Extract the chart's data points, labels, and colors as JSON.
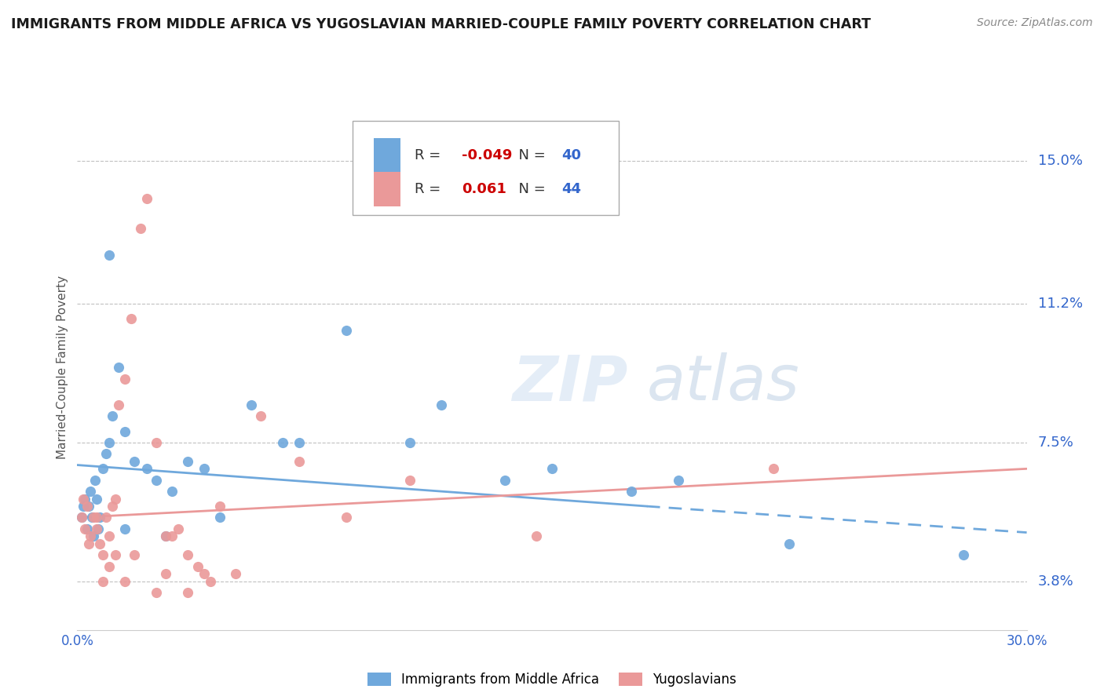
{
  "title": "IMMIGRANTS FROM MIDDLE AFRICA VS YUGOSLAVIAN MARRIED-COUPLE FAMILY POVERTY CORRELATION CHART",
  "source": "Source: ZipAtlas.com",
  "ylabel": "Married-Couple Family Poverty",
  "xlim": [
    0.0,
    30.0
  ],
  "ylim": [
    2.5,
    16.5
  ],
  "ytick_labels": [
    "3.8%",
    "7.5%",
    "11.2%",
    "15.0%"
  ],
  "ytick_values": [
    3.8,
    7.5,
    11.2,
    15.0
  ],
  "xtick_values": [
    0.0,
    5.0,
    10.0,
    15.0,
    20.0,
    25.0,
    30.0
  ],
  "series1_label": "Immigrants from Middle Africa",
  "series1_color": "#6fa8dc",
  "series1_R": "-0.049",
  "series1_N": "40",
  "series2_label": "Yugoslavians",
  "series2_color": "#ea9999",
  "series2_R": "0.061",
  "series2_N": "44",
  "legend_R_color": "#cc0000",
  "legend_N_color": "#3366cc",
  "background_color": "#ffffff",
  "grid_color": "#c0c0c0",
  "axis_color": "#3366cc",
  "series1_x": [
    0.15,
    0.2,
    0.25,
    0.3,
    0.35,
    0.4,
    0.45,
    0.5,
    0.55,
    0.6,
    0.65,
    0.7,
    0.8,
    0.9,
    1.0,
    1.1,
    1.3,
    1.5,
    1.8,
    2.2,
    2.5,
    3.0,
    3.5,
    4.0,
    5.5,
    7.0,
    8.5,
    10.5,
    11.5,
    13.5,
    15.0,
    17.5,
    19.0,
    22.5,
    1.0,
    1.5,
    2.8,
    4.5,
    6.5,
    28.0
  ],
  "series1_y": [
    5.5,
    5.8,
    6.0,
    5.2,
    5.8,
    6.2,
    5.5,
    5.0,
    6.5,
    6.0,
    5.2,
    5.5,
    6.8,
    7.2,
    7.5,
    8.2,
    9.5,
    7.8,
    7.0,
    6.8,
    6.5,
    6.2,
    7.0,
    6.8,
    8.5,
    7.5,
    10.5,
    7.5,
    8.5,
    6.5,
    6.8,
    6.2,
    6.5,
    4.8,
    12.5,
    5.2,
    5.0,
    5.5,
    7.5,
    4.5
  ],
  "series2_x": [
    0.15,
    0.2,
    0.25,
    0.3,
    0.35,
    0.4,
    0.5,
    0.6,
    0.7,
    0.8,
    0.9,
    1.0,
    1.1,
    1.2,
    1.3,
    1.5,
    1.7,
    2.0,
    2.2,
    2.5,
    2.8,
    3.2,
    3.5,
    3.8,
    4.0,
    4.5,
    5.0,
    5.8,
    7.0,
    8.5,
    10.5,
    3.0,
    1.8,
    1.0,
    2.8,
    4.2,
    2.5,
    3.5,
    1.5,
    1.2,
    0.8,
    0.6,
    22.0,
    14.5
  ],
  "series2_y": [
    5.5,
    6.0,
    5.2,
    5.8,
    4.8,
    5.0,
    5.5,
    5.2,
    4.8,
    4.5,
    5.5,
    5.0,
    5.8,
    6.0,
    8.5,
    9.2,
    10.8,
    13.2,
    14.0,
    7.5,
    5.0,
    5.2,
    4.5,
    4.2,
    4.0,
    5.8,
    4.0,
    8.2,
    7.0,
    5.5,
    6.5,
    5.0,
    4.5,
    4.2,
    4.0,
    3.8,
    3.5,
    3.5,
    3.8,
    4.5,
    3.8,
    5.5,
    6.8,
    5.0
  ],
  "line1_x0": 0.0,
  "line1_x1": 18.0,
  "line1_y0": 6.9,
  "line1_y1": 5.8,
  "line1_dash_x0": 18.0,
  "line1_dash_x1": 30.0,
  "line1_dash_y0": 5.8,
  "line1_dash_y1": 5.1,
  "line2_x0": 0.0,
  "line2_x1": 30.0,
  "line2_y0": 5.5,
  "line2_y1": 6.8
}
